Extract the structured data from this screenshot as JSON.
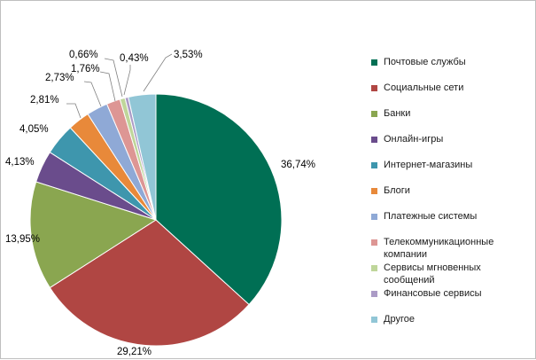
{
  "chart_data": {
    "type": "pie",
    "title": "",
    "slices": [
      {
        "label": "Почтовые службы",
        "value": 36.74,
        "display": "36,74%",
        "color": "#006f54"
      },
      {
        "label": "Социальные сети",
        "value": 29.21,
        "display": "29,21%",
        "color": "#b04643"
      },
      {
        "label": "Банки",
        "value": 13.95,
        "display": "13,95%",
        "color": "#8aa650"
      },
      {
        "label": "Онлайн-игры",
        "value": 4.13,
        "display": "4,13%",
        "color": "#6a4c8c"
      },
      {
        "label": "Интернет-магазины",
        "value": 4.05,
        "display": "4,05%",
        "color": "#3e96ad"
      },
      {
        "label": "Блоги",
        "value": 2.81,
        "display": "2,81%",
        "color": "#e8893a"
      },
      {
        "label": "Платежные системы",
        "value": 2.73,
        "display": "2,73%",
        "color": "#8fa9d6"
      },
      {
        "label": "Телекоммуникационные компании",
        "value": 1.76,
        "display": "1,76%",
        "color": "#dd9694"
      },
      {
        "label": "Сервисы мгновенных сообщений",
        "value": 0.66,
        "display": "0,66%",
        "color": "#bfd69a"
      },
      {
        "label": "Финансовые сервисы",
        "value": 0.43,
        "display": "0,43%",
        "color": "#ab9bc6"
      },
      {
        "label": "Другое",
        "value": 3.53,
        "display": "3,53%",
        "color": "#91c6d6"
      }
    ],
    "legend_position": "right"
  }
}
